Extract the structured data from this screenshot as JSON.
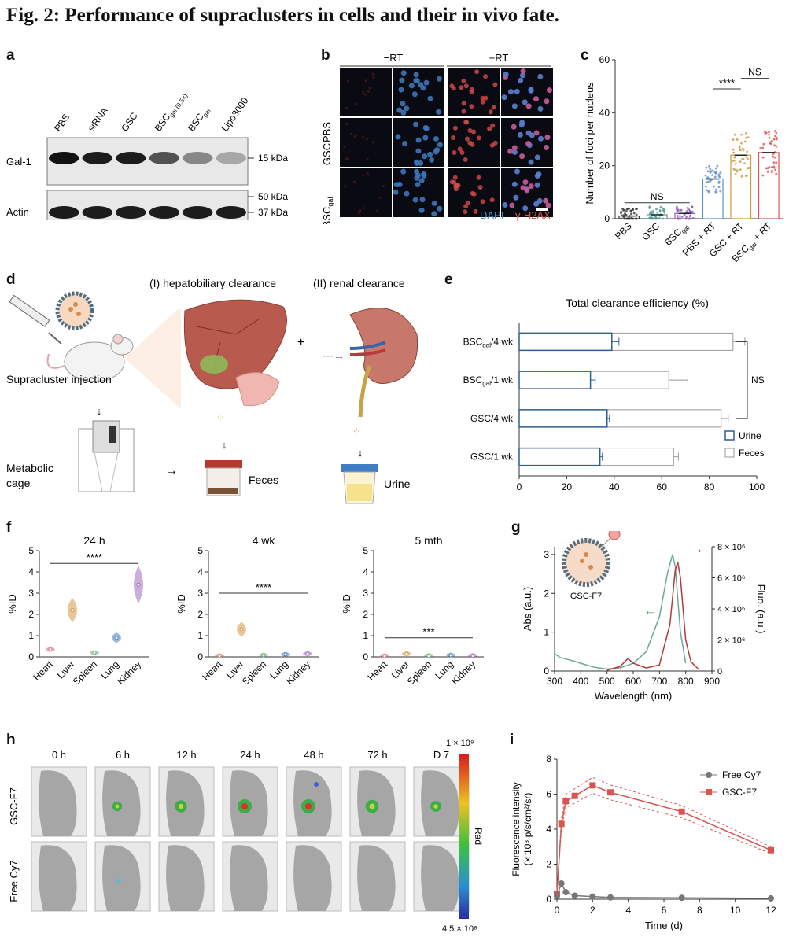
{
  "figure": {
    "title": "Fig. 2: Performance of supraclusters in cells and their in vivo fate.",
    "panel_letters": [
      "a",
      "b",
      "c",
      "d",
      "e",
      "f",
      "g",
      "h",
      "i"
    ]
  },
  "panel_a": {
    "lanes": [
      "PBS",
      "siRNA",
      "GSC",
      "BSC",
      "BSC",
      "Lipo3000"
    ],
    "lane_subscripts": [
      "",
      "",
      "",
      "gal (0.5×)",
      "gal",
      ""
    ],
    "rows": [
      "Gal-1",
      "Actin"
    ],
    "markers": [
      "15 kDa",
      "50 kDa",
      "37 kDa"
    ]
  },
  "panel_b": {
    "columns": [
      "−RT",
      "+RT"
    ],
    "rows": [
      "PBS",
      "GSC",
      "BSC"
    ],
    "row_subscripts": [
      "",
      "",
      "gal"
    ],
    "legend": [
      "DAPI",
      "γ-H2AX"
    ]
  },
  "panel_c": {
    "chart_data": {
      "type": "bar",
      "ylabel": "Number of foci per nucleus",
      "ylim": [
        0,
        60
      ],
      "yticks": [
        "0",
        "20",
        "40",
        "60"
      ],
      "categories": [
        "PBS",
        "GSC",
        "BSCgal",
        "PBS + RT",
        "GSC + RT",
        "BSCgal + RT"
      ],
      "values": [
        1,
        1.5,
        2,
        15,
        24,
        25
      ],
      "colors": [
        "#333333",
        "#4f9a8f",
        "#8c5bb8",
        "#5b8fd0",
        "#c79a3a",
        "#d9534f"
      ],
      "annotations": [
        "NS",
        "****",
        "NS"
      ]
    }
  },
  "panel_d": {
    "labels": {
      "hepato": "(I) hepatobiliary clearance",
      "renal": "(II) renal clearance",
      "injection": "Supracluster injection",
      "cage": "Metabolic cage",
      "feces": "Feces",
      "urine": "Urine",
      "plus": "+"
    }
  },
  "panel_e": {
    "chart_data": {
      "type": "bar",
      "orientation": "horizontal",
      "title": "Total clearance efficiency (%)",
      "categories": [
        "BSCgal/4 wk",
        "BSCgal/1 wk",
        "GSC/4 wk",
        "GSC/1 wk"
      ],
      "series": [
        {
          "name": "Urine",
          "values": [
            39,
            30,
            37,
            34
          ],
          "errors": [
            3,
            2,
            1,
            1
          ]
        },
        {
          "name": "Feces",
          "values": [
            90,
            63,
            85,
            65
          ],
          "errors": [
            5,
            8,
            3,
            2
          ]
        }
      ],
      "xlim": [
        0,
        100
      ],
      "xticks": [
        "0",
        "20",
        "40",
        "60",
        "80",
        "100"
      ],
      "annotation": "NS",
      "legend_position": "bottom-right"
    }
  },
  "panel_f": {
    "chart_data": [
      {
        "type": "violin",
        "title": "24 h",
        "ylabel": "%ID",
        "ylim": [
          0,
          5
        ],
        "yticks": [
          "0",
          "1",
          "2",
          "3",
          "4",
          "5"
        ],
        "categories": [
          "Heart",
          "Liver",
          "Spleen",
          "Lung",
          "Kidney"
        ],
        "values": [
          0.35,
          2.2,
          0.2,
          0.9,
          3.4
        ],
        "annotation": "****"
      },
      {
        "type": "violin",
        "title": "4 wk",
        "ylabel": "%ID",
        "ylim": [
          0,
          5
        ],
        "yticks": [
          "0",
          "1",
          "2",
          "3",
          "4",
          "5"
        ],
        "categories": [
          "Heart",
          "Liver",
          "Spleen",
          "Lung",
          "Kidney"
        ],
        "values": [
          0.05,
          1.3,
          0.08,
          0.12,
          0.15
        ],
        "annotation": "****"
      },
      {
        "type": "violin",
        "title": "5 mth",
        "ylabel": "%ID",
        "ylim": [
          0,
          5
        ],
        "yticks": [
          "0",
          "1",
          "2",
          "3",
          "4",
          "5"
        ],
        "categories": [
          "Heart",
          "Liver",
          "Spleen",
          "Lung",
          "Kidney"
        ],
        "values": [
          0.05,
          0.15,
          0.06,
          0.08,
          0.06
        ],
        "annotation": "***"
      }
    ],
    "colors": [
      "#d27a74",
      "#d49a45",
      "#6bb37a",
      "#4f7fc0",
      "#a06fc0"
    ]
  },
  "panel_g": {
    "chart_data": {
      "type": "line",
      "xlabel": "Wavelength (nm)",
      "ylabel_left": "Abs (a.u.)",
      "ylabel_right": "Fluo. (a.u.)",
      "xlim": [
        300,
        900
      ],
      "xticks": [
        "300",
        "400",
        "500",
        "600",
        "700",
        "800",
        "900"
      ],
      "yticks_left": [
        "0",
        "1",
        "2",
        "3"
      ],
      "yticks_right": [
        "0",
        "2 × 10⁶",
        "4 × 10⁶",
        "6 × 10⁶",
        "8 × 10⁶"
      ],
      "series": [
        {
          "name": "Abs",
          "color": "#6aa89c",
          "x": [
            300,
            320,
            350,
            400,
            450,
            500,
            550,
            600,
            650,
            700,
            730,
            750,
            760,
            780,
            800
          ],
          "y": [
            0.45,
            0.35,
            0.3,
            0.2,
            0.1,
            0.05,
            0.08,
            0.2,
            0.5,
            1.4,
            2.5,
            3.0,
            2.7,
            1.0,
            0.2
          ]
        },
        {
          "name": "Fluo",
          "color": "#b23a3a",
          "x": [
            500,
            550,
            580,
            600,
            650,
            700,
            740,
            760,
            770,
            780,
            800,
            820,
            850
          ],
          "y": [
            0.05,
            0.3,
            0.8,
            0.5,
            0.2,
            0.4,
            3.0,
            6.5,
            7.0,
            6.0,
            2.0,
            0.6,
            0.1
          ]
        }
      ],
      "sample_label": "GSC-F7"
    }
  },
  "panel_h": {
    "timepoints": [
      "0 h",
      "6 h",
      "12 h",
      "24 h",
      "48 h",
      "72 h",
      "D 7"
    ],
    "rows": [
      "GSC-F7",
      "Free Cy7"
    ],
    "colorbar_max": "1 × 10⁹",
    "colorbar_min": "4.5 × 10⁸",
    "colorbar_label": "Rad"
  },
  "panel_i": {
    "chart_data": {
      "type": "line",
      "xlabel": "Time (d)",
      "ylabel": "Fluorescence intensity (× 10⁸ p/s/cm²/sr)",
      "xlim": [
        0,
        12
      ],
      "ylim": [
        0,
        8
      ],
      "xticks": [
        "0",
        "2",
        "4",
        "6",
        "8",
        "10",
        "12"
      ],
      "yticks": [
        "0",
        "2",
        "4",
        "6",
        "8"
      ],
      "series": [
        {
          "name": "Free Cy7",
          "color": "#777777",
          "x": [
            0,
            0.25,
            0.5,
            1,
            2,
            3,
            7,
            12
          ],
          "y": [
            0.2,
            0.9,
            0.4,
            0.2,
            0.15,
            0.1,
            0.08,
            0.05
          ]
        },
        {
          "name": "GSC-F7",
          "color": "#d9534f",
          "x": [
            0,
            0.25,
            0.5,
            1,
            2,
            3,
            7,
            12
          ],
          "y": [
            0.3,
            4.3,
            5.6,
            5.9,
            6.5,
            6.1,
            5.0,
            2.8
          ]
        }
      ],
      "legend_position": "top-right"
    }
  }
}
